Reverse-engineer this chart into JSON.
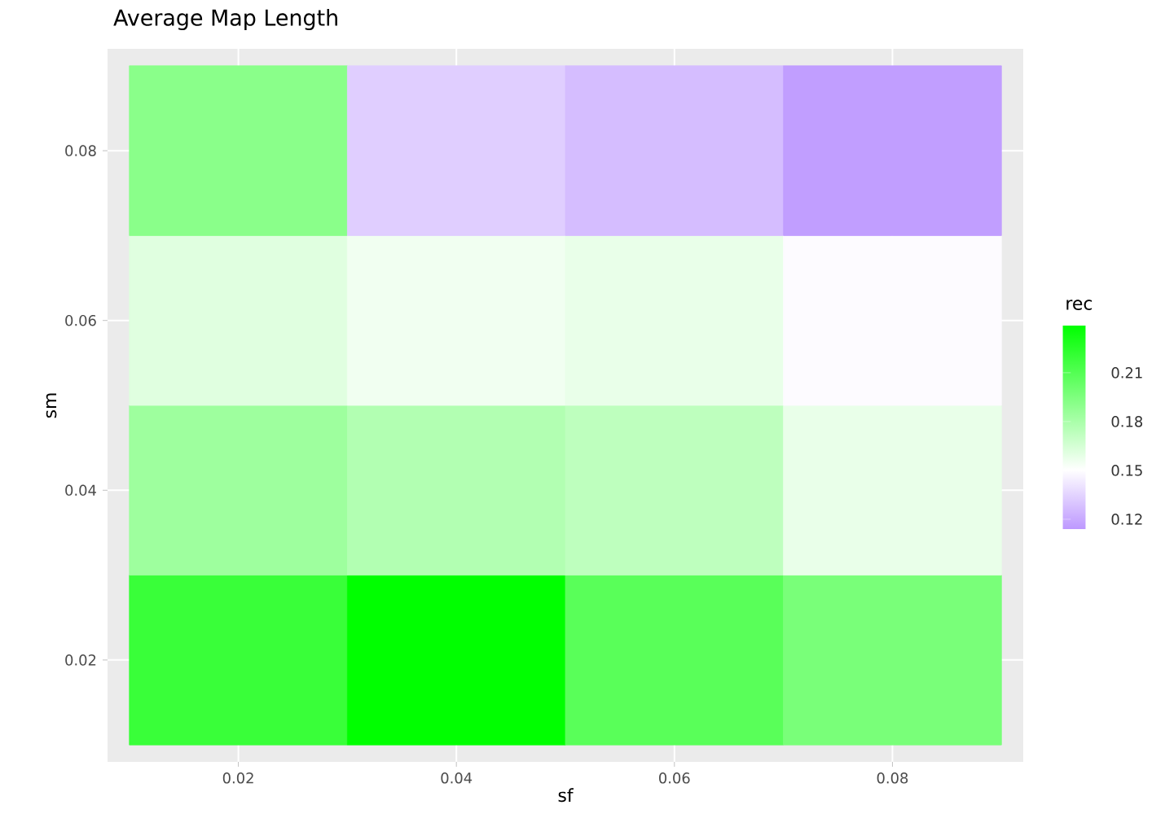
{
  "chart_data": {
    "type": "heatmap",
    "title": "Average Map Length",
    "xlabel": "sf",
    "ylabel": "sm",
    "clabel": "rec",
    "categories": [
      "0.02",
      "0.04",
      "0.06",
      "0.08"
    ],
    "y_categories": [
      "0.08",
      "0.06",
      "0.04",
      "0.02"
    ],
    "cells": [
      [
        0.191,
        0.133,
        0.127,
        0.116
      ],
      [
        0.161,
        0.155,
        0.158,
        0.149
      ],
      [
        0.184,
        0.177,
        0.173,
        0.158
      ],
      [
        0.219,
        0.239,
        0.208,
        0.197
      ]
    ],
    "clim": [
      0.114,
      0.239
    ],
    "cticks": [
      0.12,
      0.15,
      0.18,
      0.21
    ],
    "grid": true
  }
}
